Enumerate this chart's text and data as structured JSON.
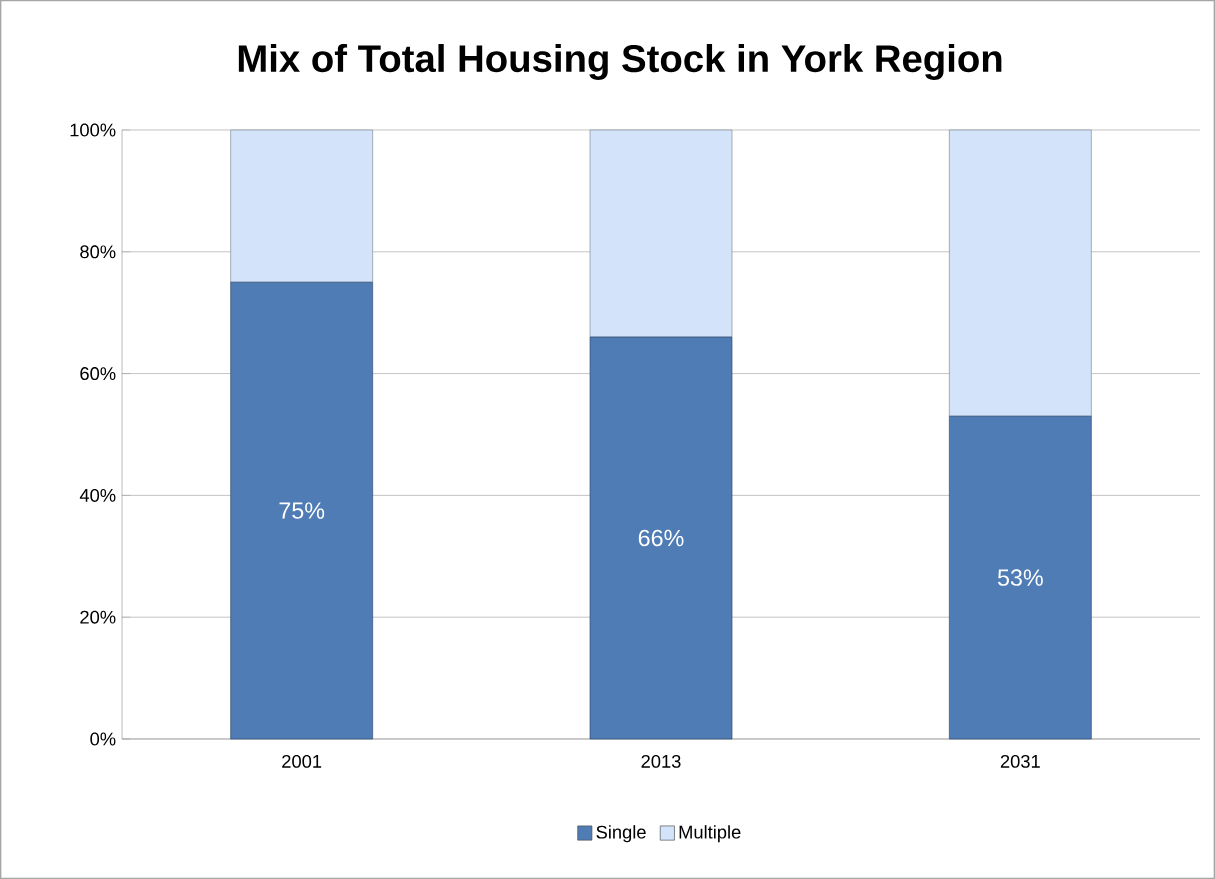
{
  "chart_data": {
    "type": "bar",
    "title": "Mix of Total Housing Stock in York Region",
    "categories": [
      "2001",
      "2013",
      "2031"
    ],
    "series": [
      {
        "name": "Single",
        "color": "#4f7cb5",
        "values": [
          75,
          66,
          53
        ],
        "value_labels": [
          "75%",
          "66%",
          "53%"
        ]
      },
      {
        "name": "Multiple",
        "color": "#d3e4fa",
        "values": [
          25,
          34,
          47
        ]
      }
    ],
    "stacked": true,
    "ylim": [
      0,
      100
    ],
    "yticks": [
      {
        "value": 0,
        "label": "0%"
      },
      {
        "value": 20,
        "label": "20%"
      },
      {
        "value": 40,
        "label": "40%"
      },
      {
        "value": 60,
        "label": "60%"
      },
      {
        "value": 80,
        "label": "80%"
      },
      {
        "value": 100,
        "label": "100%"
      }
    ],
    "grid": "y",
    "legend": "bottom"
  }
}
